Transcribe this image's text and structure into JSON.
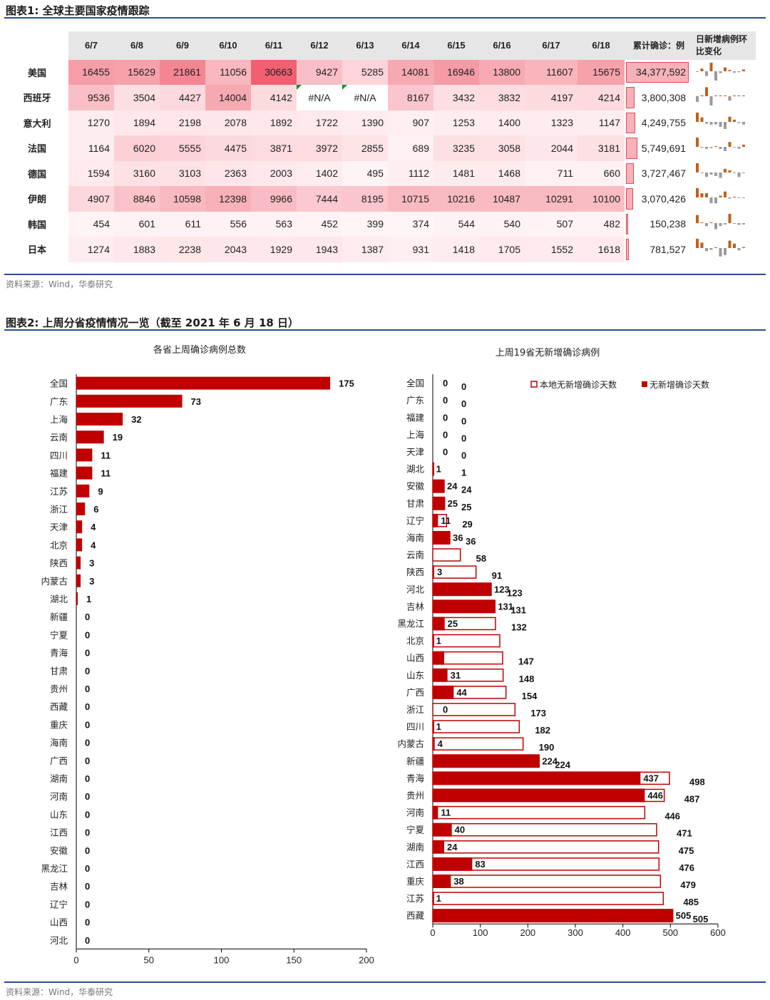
{
  "fig1": {
    "title": "图表1:  全球主要国家疫情跟踪",
    "dates": [
      "6/7",
      "6/8",
      "6/9",
      "6/10",
      "6/11",
      "6/12",
      "6/13",
      "6/14",
      "6/15",
      "6/16",
      "6/17",
      "6/18"
    ],
    "col_total": "累计确诊：例",
    "col_trend": "日新增病例环比变化",
    "rows": [
      {
        "country": "美国",
        "values": [
          16455,
          15629,
          21861,
          11056,
          30663,
          9427,
          5285,
          14081,
          16946,
          13800,
          11607,
          15675
        ],
        "total": "34,377,592",
        "total_num": 34377592
      },
      {
        "country": "西班牙",
        "values": [
          9536,
          3504,
          4427,
          14004,
          4142,
          "#N/A",
          "#N/A",
          8167,
          3432,
          3832,
          4197,
          4214
        ],
        "total": "3,800,308",
        "total_num": 3800308
      },
      {
        "country": "意大利",
        "values": [
          1270,
          1894,
          2198,
          2078,
          1892,
          1722,
          1390,
          907,
          1253,
          1400,
          1323,
          1147
        ],
        "total": "4,249,755",
        "total_num": 4249755
      },
      {
        "country": "法国",
        "values": [
          1164,
          6020,
          5555,
          4475,
          3871,
          3972,
          2855,
          689,
          3235,
          3058,
          2044,
          3181
        ],
        "total": "5,749,691",
        "total_num": 5749691
      },
      {
        "country": "德国",
        "values": [
          1594,
          3160,
          3103,
          2363,
          2003,
          1402,
          495,
          1112,
          1481,
          1468,
          711,
          660
        ],
        "total": "3,727,467",
        "total_num": 3727467
      },
      {
        "country": "伊朗",
        "values": [
          4907,
          8846,
          10598,
          12398,
          9966,
          7444,
          8195,
          10715,
          10216,
          10487,
          10291,
          10100
        ],
        "total": "3,070,426",
        "total_num": 3070426
      },
      {
        "country": "韩国",
        "values": [
          454,
          601,
          611,
          556,
          563,
          452,
          399,
          374,
          544,
          540,
          507,
          482
        ],
        "total": "150,238",
        "total_num": 150238
      },
      {
        "country": "日本",
        "values": [
          1274,
          1883,
          2238,
          2043,
          1929,
          1943,
          1387,
          931,
          1418,
          1705,
          1552,
          1618
        ],
        "total": "781,527",
        "total_num": 781527
      }
    ],
    "source": "资料来源：Wind，华泰研究"
  },
  "fig2": {
    "title": "图表2:  上周分省疫情情况一览（截至 2021 年 6 月 18 日）",
    "source": "资料来源：Wind，华泰研究",
    "colors": {
      "bar": "#c00000",
      "outline": "#c00000",
      "table_max": "#f06070",
      "table_min": "#ffffff"
    }
  },
  "chart_data": [
    {
      "type": "bar",
      "orientation": "horizontal",
      "title": "各省上周确诊病例总数",
      "categories": [
        "全国",
        "广东",
        "上海",
        "云南",
        "四川",
        "福建",
        "江苏",
        "浙江",
        "天津",
        "北京",
        "陕西",
        "内蒙古",
        "湖北",
        "新疆",
        "宁夏",
        "青海",
        "甘肃",
        "贵州",
        "西藏",
        "重庆",
        "海南",
        "广西",
        "湖南",
        "河南",
        "山东",
        "江西",
        "安徽",
        "黑龙江",
        "吉林",
        "辽宁",
        "山西",
        "河北"
      ],
      "values": [
        175,
        73,
        32,
        19,
        11,
        11,
        9,
        6,
        4,
        4,
        3,
        3,
        1,
        0,
        0,
        0,
        0,
        0,
        0,
        0,
        0,
        0,
        0,
        0,
        0,
        0,
        0,
        0,
        0,
        0,
        0,
        0
      ],
      "xlim": [
        0,
        200
      ],
      "xticks": [
        0,
        50,
        100,
        150,
        200
      ]
    },
    {
      "type": "bar",
      "orientation": "horizontal",
      "title": "上周19省无新增确诊病例",
      "categories": [
        "全国",
        "广东",
        "福建",
        "上海",
        "天津",
        "湖北",
        "安徽",
        "甘肃",
        "辽宁",
        "海南",
        "云南",
        "陕西",
        "河北",
        "吉林",
        "黑龙江",
        "北京",
        "山西",
        "山东",
        "广西",
        "浙江",
        "四川",
        "内蒙古",
        "新疆",
        "青海",
        "贵州",
        "河南",
        "宁夏",
        "湖南",
        "江西",
        "重庆",
        "江苏",
        "西藏"
      ],
      "series": [
        {
          "name": "本地无新增确诊天数",
          "style": "outline",
          "values": [
            0,
            0,
            0,
            0,
            0,
            1,
            24,
            25,
            29,
            36,
            58,
            91,
            123,
            131,
            132,
            141,
            147,
            148,
            154,
            173,
            182,
            190,
            224,
            498,
            487,
            446,
            471,
            475,
            476,
            479,
            485,
            505
          ],
          "labels": [
            "0",
            "0",
            "0",
            "0",
            "0",
            "1",
            "24",
            "25",
            "29",
            "36",
            "58",
            "91",
            "123",
            "131",
            "132",
            "",
            "147",
            "148",
            "154",
            "173",
            "182",
            "190",
            "224",
            "498",
            "487",
            "446",
            "471",
            "475",
            "476",
            "479",
            "485",
            "505"
          ]
        },
        {
          "name": "无新增确诊天数",
          "style": "filled",
          "values": [
            0,
            0,
            0,
            0,
            0,
            1,
            24,
            25,
            11,
            36,
            0,
            3,
            123,
            131,
            25,
            1,
            24,
            31,
            44,
            0,
            1,
            4,
            224,
            437,
            446,
            11,
            40,
            24,
            83,
            38,
            1,
            505
          ],
          "labels": [
            "0",
            "0",
            "0",
            "0",
            "0",
            "1",
            "24",
            "25",
            "11",
            "36",
            "",
            "3",
            "123",
            "131",
            "25",
            "1",
            "",
            "31",
            "44",
            "0",
            "1",
            "4",
            "224",
            "437",
            "446",
            "11",
            "40",
            "24",
            "83",
            "38",
            "1",
            "505"
          ]
        }
      ],
      "xlim": [
        0,
        600
      ],
      "xticks": [
        0,
        100,
        200,
        300,
        400,
        500,
        600
      ],
      "legend_placement": "top-right"
    }
  ]
}
